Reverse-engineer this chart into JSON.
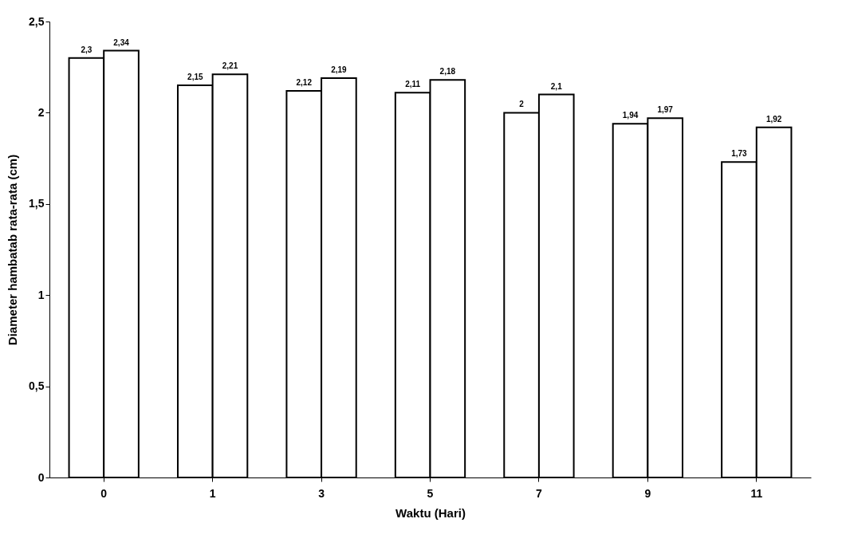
{
  "chart_data": {
    "type": "bar",
    "xlabel": "Waktu (Hari)",
    "ylabel": "Diameter hambatab rata-rata (cm)",
    "categories": [
      "0",
      "1",
      "3",
      "5",
      "7",
      "9",
      "11"
    ],
    "series": [
      {
        "color": "#ffffff",
        "values": [
          2.3,
          2.15,
          2.12,
          2.11,
          2,
          1.94,
          1.73
        ],
        "value_labels": [
          "2,3",
          "2,15",
          "2,12",
          "2,11",
          "2",
          "1,94",
          "1,73"
        ]
      },
      {
        "color": "#ffffff",
        "values": [
          2.34,
          2.21,
          2.19,
          2.18,
          2.1,
          1.97,
          1.92
        ],
        "value_labels": [
          "2,34",
          "2,21",
          "2,19",
          "2,18",
          "2,1",
          "1,97",
          "1,92"
        ]
      }
    ],
    "ylim": [
      0,
      2.5
    ],
    "yticks": [
      0,
      {
        "value": 0.5,
        "label": "0,5"
      },
      1,
      {
        "value": 1.5,
        "label": "1,5"
      },
      2,
      {
        "value": 2.5,
        "label": "2,5"
      }
    ],
    "grid": false,
    "legend": false
  }
}
